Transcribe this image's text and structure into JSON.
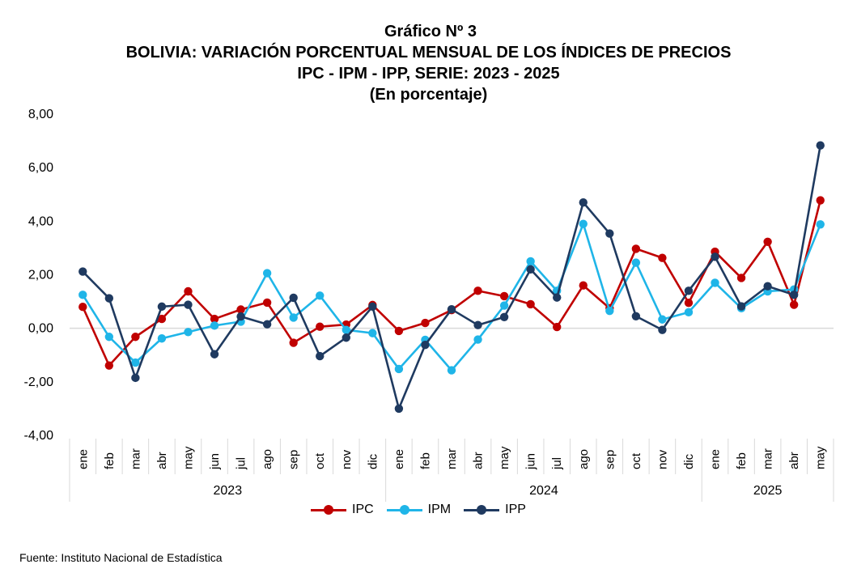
{
  "titles": {
    "line1": "Gráfico Nº 3",
    "line2": "BOLIVIA: VARIACIÓN PORCENTUAL MENSUAL DE LOS ÍNDICES DE PRECIOS",
    "line3": "IPC - IPM - IPP, SERIE: 2023 - 2025",
    "line4": "(En porcentaje)"
  },
  "source": "Fuente: Instituto Nacional de Estadística",
  "chart_data": {
    "type": "line",
    "ylim": [
      -4,
      8
    ],
    "yticks": [
      -4,
      -2,
      0,
      2,
      4,
      6,
      8
    ],
    "ytick_labels": [
      "-4,00",
      "-2,00",
      "0,00",
      "2,00",
      "4,00",
      "6,00",
      "8,00"
    ],
    "grid": false,
    "zero_line": true,
    "legend_position": "bottom",
    "categories": [
      "ene",
      "feb",
      "mar",
      "abr",
      "may",
      "jun",
      "jul",
      "ago",
      "sep",
      "oct",
      "nov",
      "dic",
      "ene",
      "feb",
      "mar",
      "abr",
      "may",
      "jun",
      "jul",
      "ago",
      "sep",
      "oct",
      "nov",
      "dic",
      "ene",
      "feb",
      "mar",
      "abr",
      "may"
    ],
    "groups": [
      {
        "label": "2023",
        "count": 12
      },
      {
        "label": "2024",
        "count": 12
      },
      {
        "label": "2025",
        "count": 5
      }
    ],
    "series": [
      {
        "name": "IPC",
        "color": "#c00000",
        "values": [
          0.8,
          -1.39,
          -0.32,
          0.35,
          1.38,
          0.35,
          0.7,
          0.96,
          -0.54,
          0.06,
          0.14,
          0.87,
          -0.1,
          0.2,
          0.68,
          1.4,
          1.2,
          0.9,
          0.05,
          1.6,
          0.75,
          2.97,
          2.63,
          0.95,
          2.86,
          1.88,
          3.23,
          0.88,
          4.78
        ]
      },
      {
        "name": "IPM",
        "color": "#1fb5e8",
        "values": [
          1.25,
          -0.32,
          -1.28,
          -0.38,
          -0.14,
          0.1,
          0.25,
          2.06,
          0.4,
          1.22,
          -0.06,
          -0.18,
          -1.52,
          -0.43,
          -1.57,
          -0.42,
          0.85,
          2.5,
          1.4,
          3.9,
          0.65,
          2.45,
          0.33,
          0.6,
          1.7,
          0.75,
          1.38,
          1.45,
          3.88
        ]
      },
      {
        "name": "IPP",
        "color": "#1f3a60",
        "values": [
          2.12,
          1.12,
          -1.85,
          0.81,
          0.88,
          -0.97,
          0.44,
          0.15,
          1.14,
          -1.04,
          -0.35,
          0.81,
          -3.0,
          -0.62,
          0.71,
          0.12,
          0.42,
          2.2,
          1.15,
          4.7,
          3.54,
          0.45,
          -0.06,
          1.4,
          2.67,
          0.82,
          1.57,
          1.25,
          6.83
        ]
      }
    ]
  }
}
